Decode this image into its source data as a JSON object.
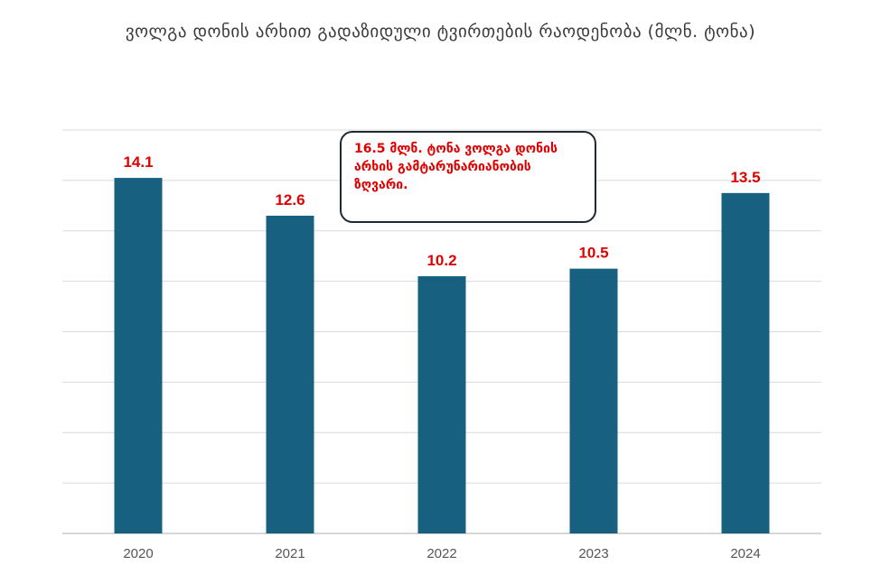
{
  "chart_data": {
    "type": "bar",
    "title": "ვოლგა დონის არხით გადაზიდული ტვირთების რაოდენობა (მლნ. ტონა)",
    "categories": [
      "2020",
      "2021",
      "2022",
      "2023",
      "2024"
    ],
    "values": [
      14.1,
      12.6,
      10.2,
      10.5,
      13.5
    ],
    "data_labels": [
      "14.1",
      "12.6",
      "10.2",
      "10.5",
      "13.5"
    ],
    "ylim": [
      0,
      16
    ],
    "grid": true,
    "legend": "none",
    "annotation": "16.5 მლნ. ტონა ვოლგა დონის არხის გამტარუნარიანობის ზღვარი.",
    "colors": {
      "bar": "#17607f",
      "data_label": "#e00000",
      "grid": "#d9d9d9",
      "axis_line": "#bfbfbf",
      "tick_label": "#555555",
      "title": "#3a3a3a",
      "annotation_text": "#e00000",
      "annotation_border": "#1b2a33"
    }
  }
}
